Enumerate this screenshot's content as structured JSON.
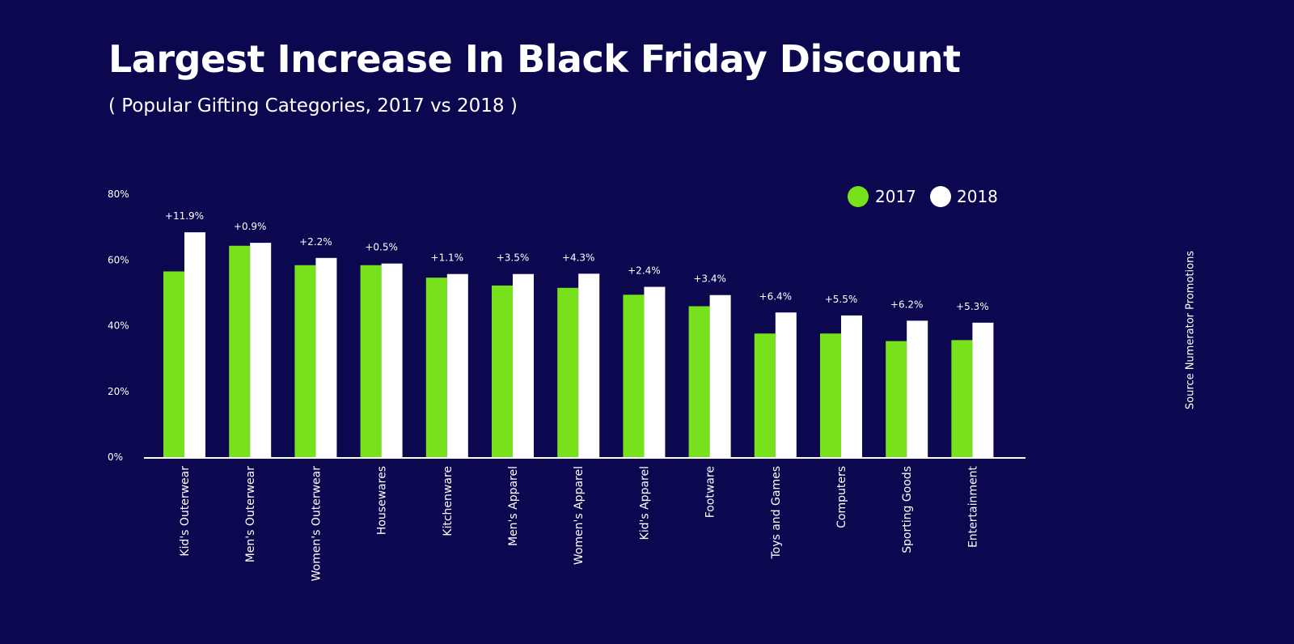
{
  "colors": {
    "background": "#0b0850",
    "series_2017": "#77e21b",
    "series_2018": "#ffffff",
    "text": "#ffffff"
  },
  "header": {
    "title": "Largest Increase In Black Friday Discount",
    "subtitle": "( Popular Gifting Categories, 2017 vs 2018 )"
  },
  "source": "Source Numerator Promotions",
  "chart_data": {
    "type": "bar",
    "title": "Largest Increase In Black Friday Discount",
    "subtitle": "( Popular Gifting Categories, 2017 vs 2018 )",
    "categories": [
      "Kid's Outerwear",
      "Men's Outerwear",
      "Women's Outerwear",
      "Housewares",
      "Kitchenware",
      "Men's Apparel",
      "Women's Apparel",
      "Kid's Apparel",
      "Footware",
      "Toys and Games",
      "Computers",
      "Sporting Goods",
      "Entertainment"
    ],
    "series": [
      {
        "name": "2017",
        "values": [
          56.5,
          64.3,
          58.4,
          58.4,
          54.6,
          52.2,
          51.5,
          49.4,
          45.9,
          37.6,
          37.6,
          35.3,
          35.6
        ]
      },
      {
        "name": "2018",
        "values": [
          68.4,
          65.2,
          60.6,
          58.9,
          55.7,
          55.7,
          55.8,
          51.8,
          49.3,
          44.0,
          43.1,
          41.5,
          40.9
        ]
      }
    ],
    "data_labels": [
      "+11.9%",
      "+0.9%",
      "+2.2%",
      "+0.5%",
      "+1.1%",
      "+3.5%",
      "+4.3%",
      "+2.4%",
      "+3.4%",
      "+6.4%",
      "+5.5%",
      "+6.2%",
      "+5.3%"
    ],
    "yticks": [
      "0%",
      "20%",
      "40%",
      "60%",
      "80%"
    ],
    "ytick_values": [
      0,
      20,
      40,
      60,
      80
    ],
    "ylim": [
      0,
      80
    ],
    "xlabel": "",
    "ylabel": "",
    "grid": false,
    "legend_position": "top-right"
  }
}
